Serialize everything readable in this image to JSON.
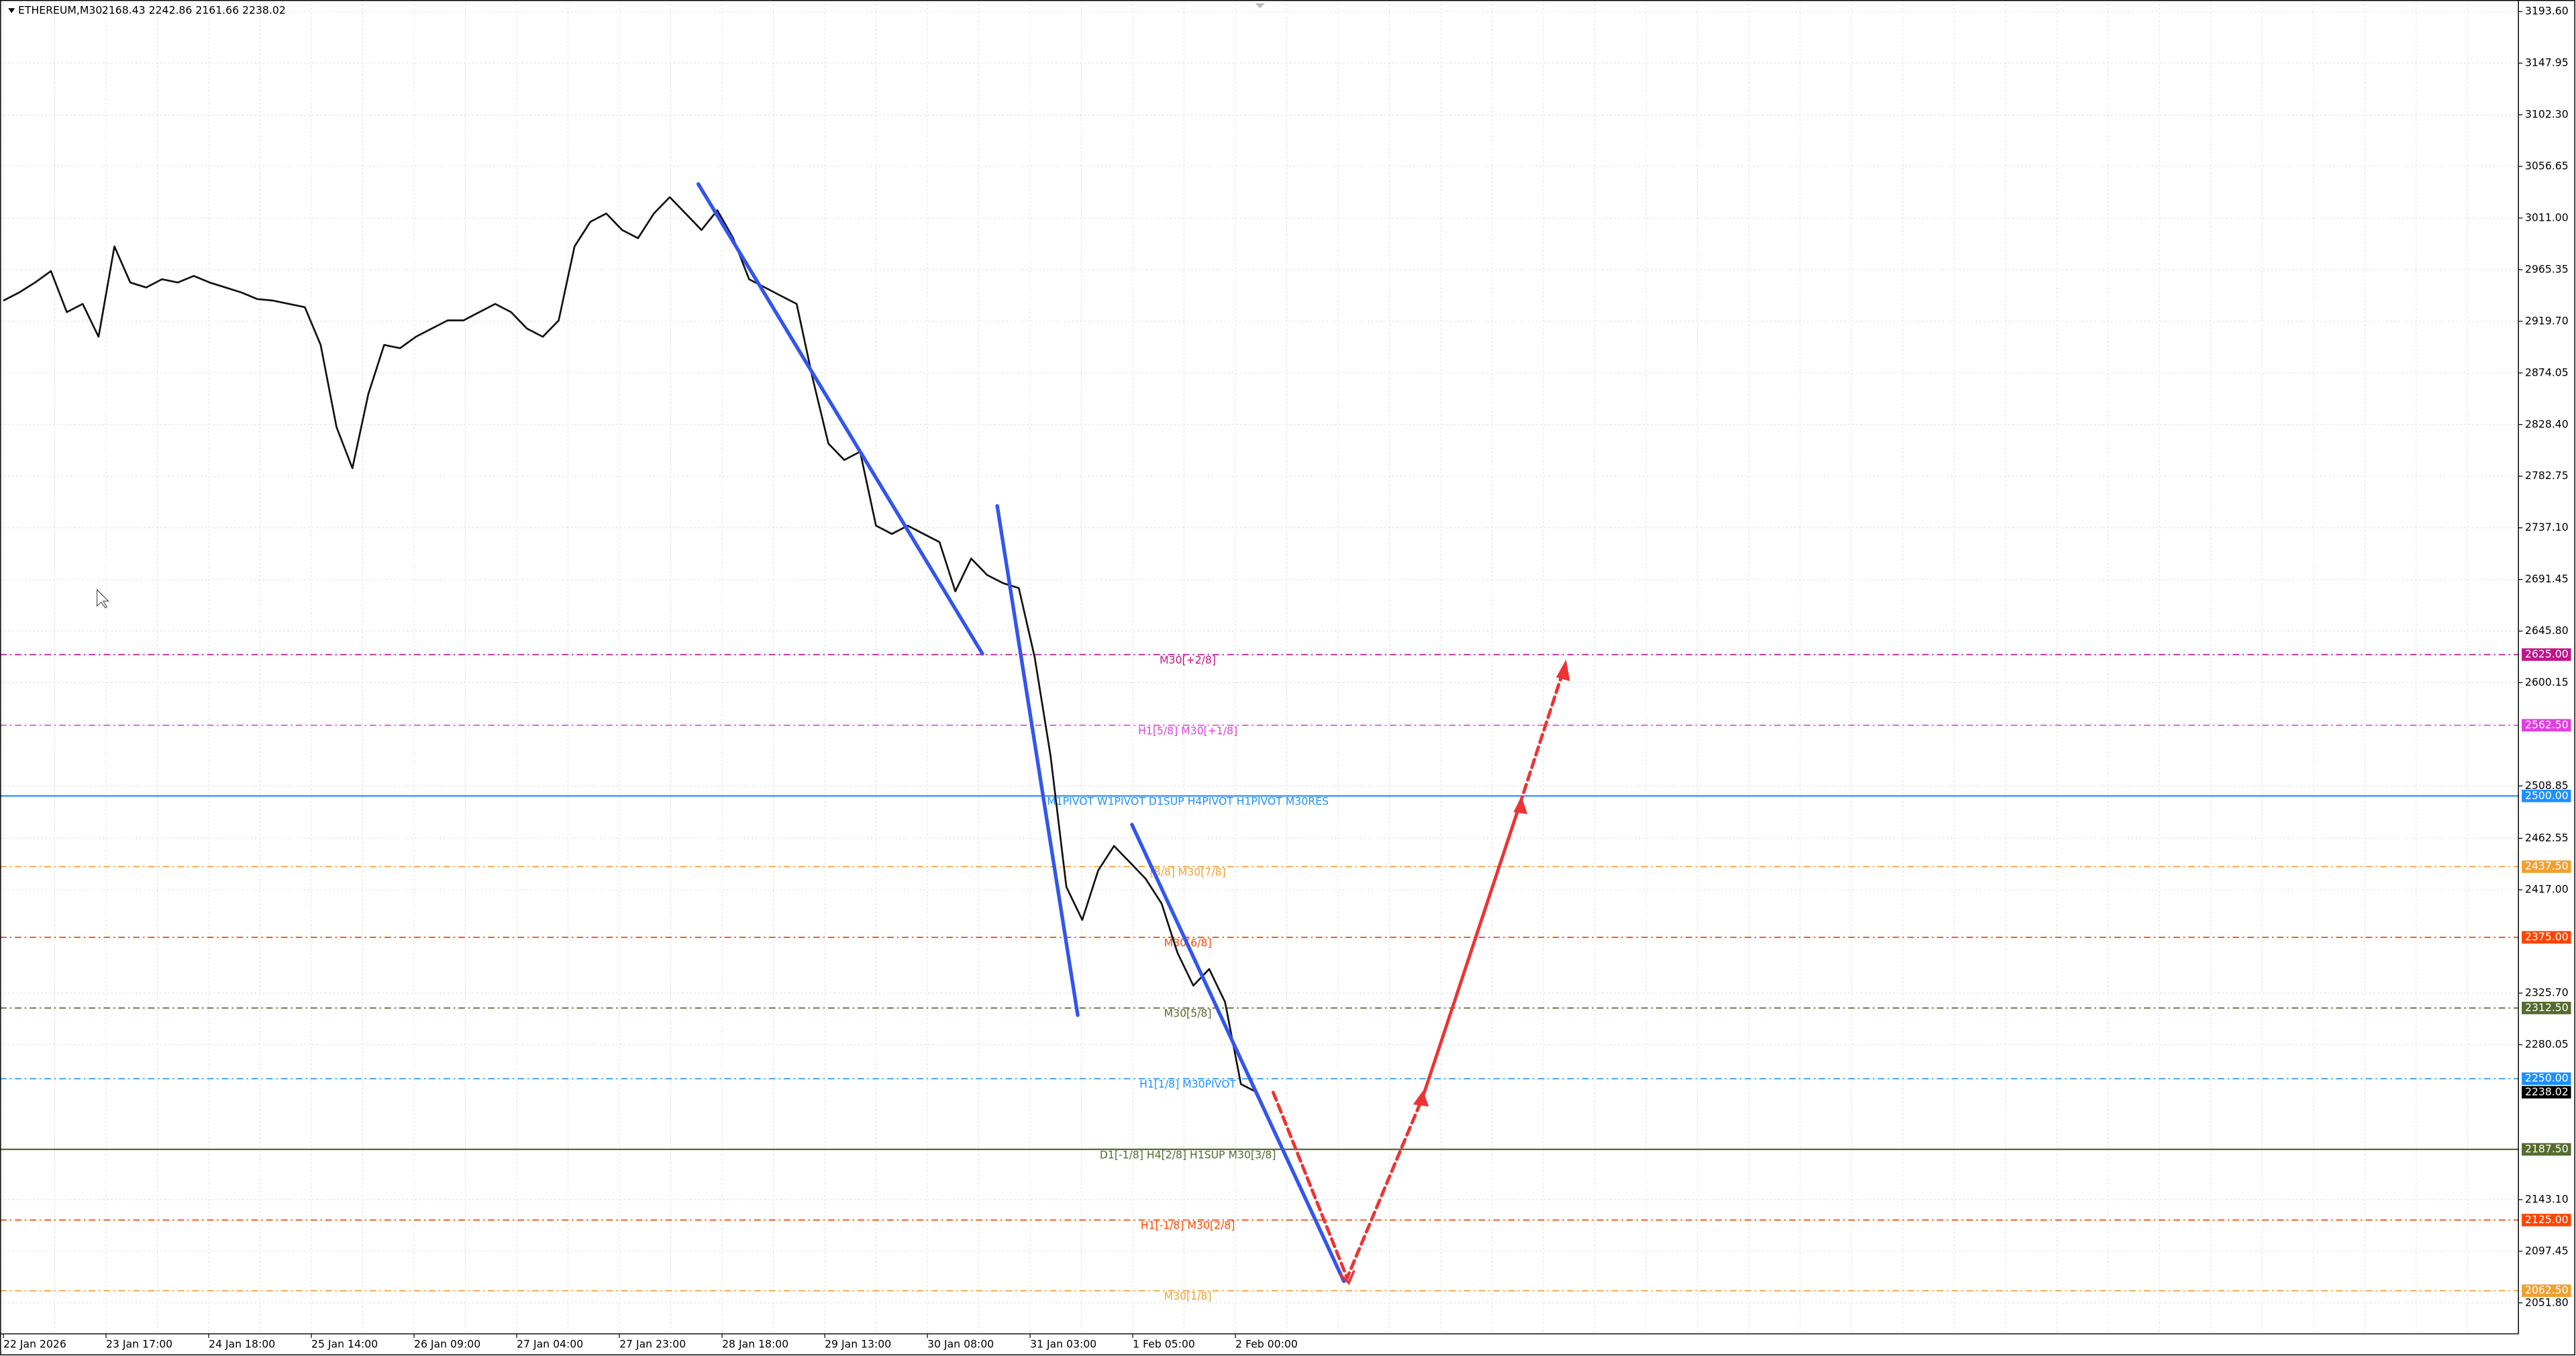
{
  "header": {
    "symbol": "ETHEREUM,M30",
    "ohlc": "2168.43 2242.86 2161.66 2238.02"
  },
  "price_axis": {
    "ylim": [
      2024.4,
      3203.8
    ],
    "yticks": [
      {
        "value": 3193.6,
        "label": "3193.60"
      },
      {
        "value": 3147.95,
        "label": "3147.95"
      },
      {
        "value": 3102.3,
        "label": "3102.30"
      },
      {
        "value": 3056.65,
        "label": "3056.65"
      },
      {
        "value": 3011,
        "label": "3011.00"
      },
      {
        "value": 2965.35,
        "label": "2965.35"
      },
      {
        "value": 2919.7,
        "label": "2919.70"
      },
      {
        "value": 2874.05,
        "label": "2874.05"
      },
      {
        "value": 2828.4,
        "label": "2828.40"
      },
      {
        "value": 2782.75,
        "label": "2782.75"
      },
      {
        "value": 2737.1,
        "label": "2737.10"
      },
      {
        "value": 2691.45,
        "label": "2691.45"
      },
      {
        "value": 2645.8,
        "label": "2645.80"
      },
      {
        "value": 2600.15,
        "label": "2600.15"
      },
      {
        "value": 2508.85,
        "label": "2508.85"
      },
      {
        "value": 2462.55,
        "label": "2462.55"
      },
      {
        "value": 2417,
        "label": "2417.00"
      },
      {
        "value": 2325.7,
        "label": "2325.70"
      },
      {
        "value": 2280.05,
        "label": "2280.05"
      },
      {
        "value": 2143.1,
        "label": "2143.10"
      },
      {
        "value": 2097.45,
        "label": "2097.45"
      },
      {
        "value": 2051.8,
        "label": "2051.80"
      }
    ]
  },
  "time_axis": [
    "22 Jan 2026",
    "23 Jan 17:00",
    "24 Jan 18:00",
    "25 Jan 14:00",
    "26 Jan 09:00",
    "27 Jan 04:00",
    "27 Jan 23:00",
    "28 Jan 18:00",
    "29 Jan 13:00",
    "30 Jan 08:00",
    "31 Jan 03:00",
    "1 Feb 05:00",
    "2 Feb 00:00"
  ],
  "levels": [
    {
      "value": 2625,
      "value_label": "2625.00",
      "text": "M30[+2/8]",
      "color": "#c0148c",
      "dashed": true
    },
    {
      "value": 2562.5,
      "value_label": "2562.50",
      "text": "H1[5/8] M30[+1/8]",
      "color": "#e040e0",
      "dashed": true
    },
    {
      "value": 2500,
      "value_label": "2500.00",
      "text": "M1PIVOT W1PIVOT D1SUP H4PIVOT H1PIVOT M30RES",
      "color": "#1e90ff",
      "dashed": false
    },
    {
      "value": 2437.5,
      "value_label": "2437.50",
      "text": "[8/8] M30[7/8]",
      "color": "#f0a030",
      "dashed": true
    },
    {
      "value": 2375,
      "value_label": "2375.00",
      "text": "M30[6/8]",
      "color": "#ff4500",
      "dashed": true
    },
    {
      "value": 2312.5,
      "value_label": "2312.50",
      "text": "M30[5/8]",
      "color": "#556b2f",
      "dashed": true
    },
    {
      "value": 2250,
      "value_label": "2250.00",
      "text": "H1[1/8] M30PIVOT",
      "color": "#1e90ff",
      "dashed": true
    },
    {
      "value": 2187.5,
      "value_label": "2187.50",
      "text": "D1[-1/8] H4[2/8] H1SUP M30[3/8]",
      "color": "#556b2f",
      "dashed": false
    },
    {
      "value": 2125,
      "value_label": "2125.00",
      "text": "H1[-1/8] M30[2/8]",
      "color": "#ff4500",
      "dashed": true
    },
    {
      "value": 2062.5,
      "value_label": "2062.50",
      "text": "M30[1/8]",
      "color": "#f0a030",
      "dashed": true
    }
  ],
  "current_price": {
    "value": 2238.02,
    "value_label": "2238.02"
  },
  "price_path": [
    2938.0,
    2945.2,
    2954.0,
    2964.1,
    2927.8,
    2935.1,
    2906.0,
    2985.9,
    2954.0,
    2949.6,
    2956.9,
    2954.0,
    2959.8,
    2954.0,
    2949.6,
    2945.2,
    2939.4,
    2938.0,
    2935.1,
    2932.2,
    2898.8,
    2826.1,
    2789.8,
    2855.2,
    2898.8,
    2895.9,
    2906.0,
    2913.3,
    2920.5,
    2920.5,
    2927.8,
    2935.1,
    2927.8,
    2913.3,
    2906.0,
    2920.5,
    2985.9,
    3007.7,
    3015.0,
    3000.4,
    2993.2,
    3015.0,
    3029.5,
    3015.0,
    3000.4,
    3017.9,
    2993.2,
    2956.9,
    2949.6,
    2942.3,
    2935.1,
    2869.7,
    2811.6,
    2797.1,
    2804.4,
    2739.0,
    2731.7,
    2739.0,
    2731.7,
    2724.5,
    2680.9,
    2709.9,
    2695.4,
    2688.2,
    2683.8,
    2622.8,
    2535.7,
    2419.5,
    2390.4,
    2434.0,
    2455.8,
    2441.3,
    2426.7,
    2404.9,
    2361.4,
    2332.3,
    2346.9,
    2317.8,
    2245.2,
    2238.02
  ]
}
